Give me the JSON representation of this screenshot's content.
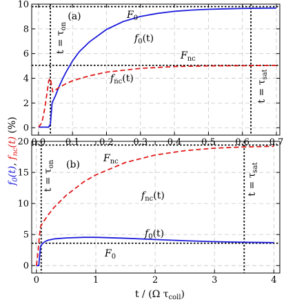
{
  "chart_data": [
    {
      "type": "line",
      "panel_label": "(a)",
      "xlim": [
        -0.02,
        0.71
      ],
      "ylim": [
        -0.6,
        10.0
      ],
      "xticks": [
        0.0,
        0.1,
        0.2,
        0.3,
        0.4,
        0.5,
        0.6,
        0.7
      ],
      "yticks": [
        0,
        2,
        4,
        6,
        8,
        10
      ],
      "xtick_labels": [
        "0.0",
        "0.1",
        "0.2",
        "0.3",
        "0.4",
        "0.5",
        "0.6",
        "0.7"
      ],
      "ytick_labels": [
        "0",
        "2",
        "4",
        "6",
        "8",
        "10"
      ],
      "grid": true,
      "series": [
        {
          "label": "f",
          "label_sub": "0",
          "label_suffix": "(t)",
          "color": "#1a1adb",
          "style": "solid",
          "x": [
            0.0,
            0.03,
            0.035,
            0.04,
            0.05,
            0.06,
            0.07,
            0.08,
            0.1,
            0.12,
            0.15,
            0.2,
            0.25,
            0.3,
            0.35,
            0.4,
            0.45,
            0.5,
            0.55,
            0.6,
            0.65,
            0.7
          ],
          "y": [
            0.05,
            0.05,
            0.3,
            2.0,
            2.6,
            3.3,
            3.9,
            4.45,
            5.4,
            6.15,
            6.95,
            7.95,
            8.6,
            9.0,
            9.25,
            9.42,
            9.52,
            9.58,
            9.62,
            9.65,
            9.67,
            9.68
          ]
        },
        {
          "label": "f",
          "label_sub": "nc",
          "label_suffix": "(t)",
          "color": "#e01818",
          "style": "dashed",
          "x": [
            0.0,
            0.01,
            0.018,
            0.025,
            0.03,
            0.035,
            0.038,
            0.042,
            0.05,
            0.06,
            0.08,
            0.1,
            0.15,
            0.2,
            0.3,
            0.4,
            0.5,
            0.6,
            0.7
          ],
          "y": [
            0.05,
            0.4,
            1.5,
            2.8,
            3.8,
            4.0,
            3.5,
            2.9,
            3.05,
            3.25,
            3.55,
            3.8,
            4.2,
            4.5,
            4.8,
            4.95,
            5.0,
            5.02,
            5.04
          ]
        }
      ],
      "reference_lines": [
        {
          "label": "F",
          "label_sub": "0",
          "axis": "y",
          "value": 9.8
        },
        {
          "label": "F",
          "label_sub": "nc",
          "axis": "y",
          "value": 5.05
        },
        {
          "label": "t = τ",
          "label_sub": "on",
          "axis": "x",
          "value": 0.035
        },
        {
          "label": "t = τ",
          "label_sub": "sat",
          "axis": "x",
          "value": 0.625
        }
      ]
    },
    {
      "type": "line",
      "panel_label": "(b)",
      "xlim": [
        -0.08,
        4.1
      ],
      "ylim": [
        -1.2,
        20.0
      ],
      "xticks": [
        0,
        1,
        2,
        3,
        4
      ],
      "yticks": [
        0,
        5,
        10,
        15,
        20
      ],
      "xtick_labels": [
        "0",
        "1",
        "2",
        "3",
        "4"
      ],
      "ytick_labels": [
        "0",
        "5",
        "10",
        "15",
        "20"
      ],
      "grid": true,
      "series": [
        {
          "label": "f",
          "label_sub": "0",
          "label_suffix": "(t)",
          "color": "#1a1adb",
          "style": "solid",
          "x": [
            0.0,
            0.04,
            0.05,
            0.07,
            0.1,
            0.15,
            0.2,
            0.3,
            0.5,
            0.8,
            1.0,
            1.5,
            2.0,
            2.5,
            3.0,
            3.5,
            4.0
          ],
          "y": [
            0.0,
            0.0,
            1.2,
            3.1,
            3.55,
            3.9,
            4.1,
            4.3,
            4.45,
            4.55,
            4.55,
            4.4,
            4.2,
            4.0,
            3.85,
            3.75,
            3.7
          ]
        },
        {
          "label": "f",
          "label_sub": "nc",
          "label_suffix": "(t)",
          "color": "#e01818",
          "style": "dashed",
          "x": [
            0.0,
            0.03,
            0.05,
            0.07,
            0.1,
            0.2,
            0.3,
            0.5,
            0.8,
            1.0,
            1.5,
            2.0,
            2.5,
            3.0,
            3.5,
            4.0
          ],
          "y": [
            0.0,
            2.5,
            4.8,
            6.3,
            6.8,
            8.2,
            9.4,
            11.3,
            13.5,
            14.6,
            16.6,
            17.8,
            18.5,
            18.9,
            19.1,
            19.2
          ]
        }
      ],
      "reference_lines": [
        {
          "label": "F",
          "label_sub": "nc",
          "axis": "y",
          "value": 19.4
        },
        {
          "label": "F",
          "label_sub": "0",
          "axis": "y",
          "value": 3.6
        },
        {
          "label": "t = τ",
          "label_sub": "on",
          "axis": "x",
          "value": 0.08
        },
        {
          "label": "t = τ",
          "label_sub": "sat",
          "axis": "x",
          "value": 3.5
        }
      ]
    }
  ],
  "ylabel": {
    "f0_main": "f",
    "f0_sub": "0",
    "f0_suffix": "(t)",
    "sep": ", ",
    "fnc_main": "f",
    "fnc_sub": "nc",
    "fnc_suffix": "(t)",
    "unit": " (%)"
  },
  "xlabel": {
    "prefix": "t / (Ω τ",
    "sub": "coll",
    "suffix": ")"
  }
}
